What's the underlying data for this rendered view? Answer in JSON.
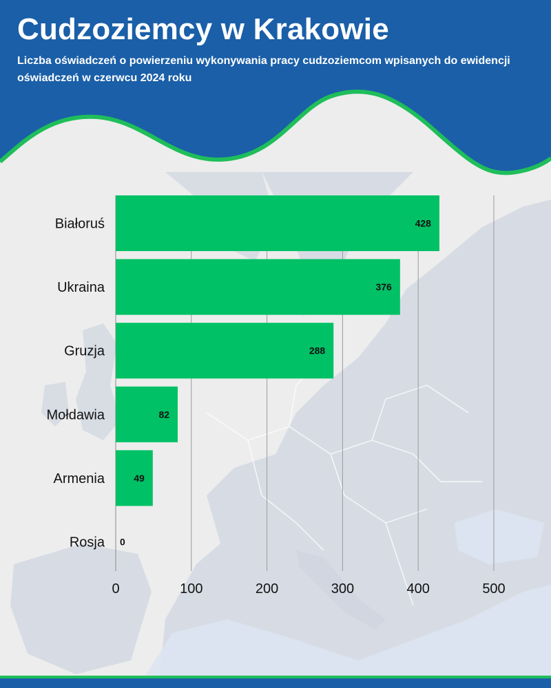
{
  "header": {
    "title": "Cudzoziemcy w Krakowie",
    "subtitle": "Liczba oświadczeń o powierzeniu wykonywania pracy cudzoziemcom wpisanych do ewidencji oświadczeń w czerwcu 2024 roku"
  },
  "colors": {
    "header_blue": "#1a5fa8",
    "accent_green": "#1fbe5a",
    "bar_green": "#00c165",
    "map_land": "#cfd5e0",
    "map_water": "#dce4f1",
    "background": "#ededed"
  },
  "chart_data": {
    "type": "bar",
    "orientation": "horizontal",
    "categories": [
      "Białoruś",
      "Ukraina",
      "Gruzja",
      "Mołdawia",
      "Armenia",
      "Rosja"
    ],
    "values": [
      428,
      376,
      288,
      82,
      49,
      0
    ],
    "xlim": [
      0,
      500
    ],
    "xticks": [
      0,
      100,
      200,
      300,
      400,
      500
    ],
    "grid": true,
    "legend": "none"
  }
}
